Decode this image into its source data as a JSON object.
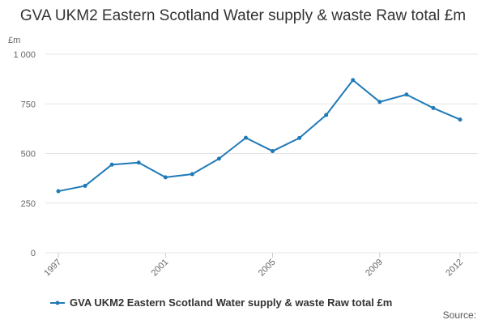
{
  "chart_data": {
    "type": "line",
    "title": "GVA UKM2 Eastern Scotland Water supply & waste Raw total £m",
    "ylabel": "£m",
    "xlabel": "",
    "ylim": [
      0,
      1000
    ],
    "yticks": [
      0,
      250,
      500,
      750,
      1000
    ],
    "ytick_labels": [
      "0",
      "250",
      "500",
      "750",
      "1 000"
    ],
    "xticks": [
      1997,
      2001,
      2005,
      2009,
      2012
    ],
    "xtick_labels": [
      "1997",
      "2001",
      "2005",
      "2009",
      "2012"
    ],
    "grid": true,
    "legend_position": "bottom-left",
    "series": [
      {
        "name": "GVA UKM2 Eastern Scotland Water supply & waste Raw total £m",
        "color": "#1f7ab8",
        "x": [
          1997,
          1998,
          1999,
          2000,
          2001,
          2002,
          2003,
          2004,
          2005,
          2006,
          2007,
          2008,
          2009,
          2010,
          2011,
          2012
        ],
        "values": [
          310,
          337,
          444,
          454,
          380,
          396,
          474,
          579,
          512,
          578,
          694,
          870,
          760,
          797,
          729,
          671
        ]
      }
    ]
  },
  "source_label": "Source:"
}
